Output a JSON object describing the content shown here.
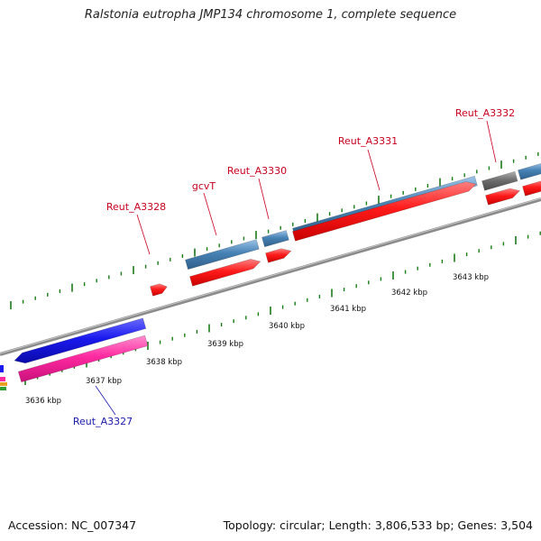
{
  "title": "Ralstonia eutropha JMP134 chromosome 1, complete sequence",
  "footer": {
    "accession": "Accession: NC_007347",
    "topology": "Topology: circular; Length: 3,806,533 bp; Genes: 3,504"
  },
  "colors": {
    "backbone": "#8a8a8a",
    "tick": "#1a7a1a",
    "cds_steelblue": "#4682b4",
    "cds_red": "#ff1a1a",
    "cds_blue": "#1a1aee",
    "cds_pink": "#ff2aa0",
    "cds_gray": "#6e6e6e",
    "label_red": "#c8001e",
    "label_blue": "#1a1aaa"
  },
  "kbp_labels": [
    "3636 kbp",
    "3637 kbp",
    "3638 kbp",
    "3639 kbp",
    "3640 kbp",
    "3641 kbp",
    "3642 kbp",
    "3643 kbp"
  ],
  "gene_labels": [
    "Reut_A3327",
    "Reut_A3328",
    "gcvT",
    "Reut_A3330",
    "Reut_A3331",
    "Reut_A3332"
  ]
}
